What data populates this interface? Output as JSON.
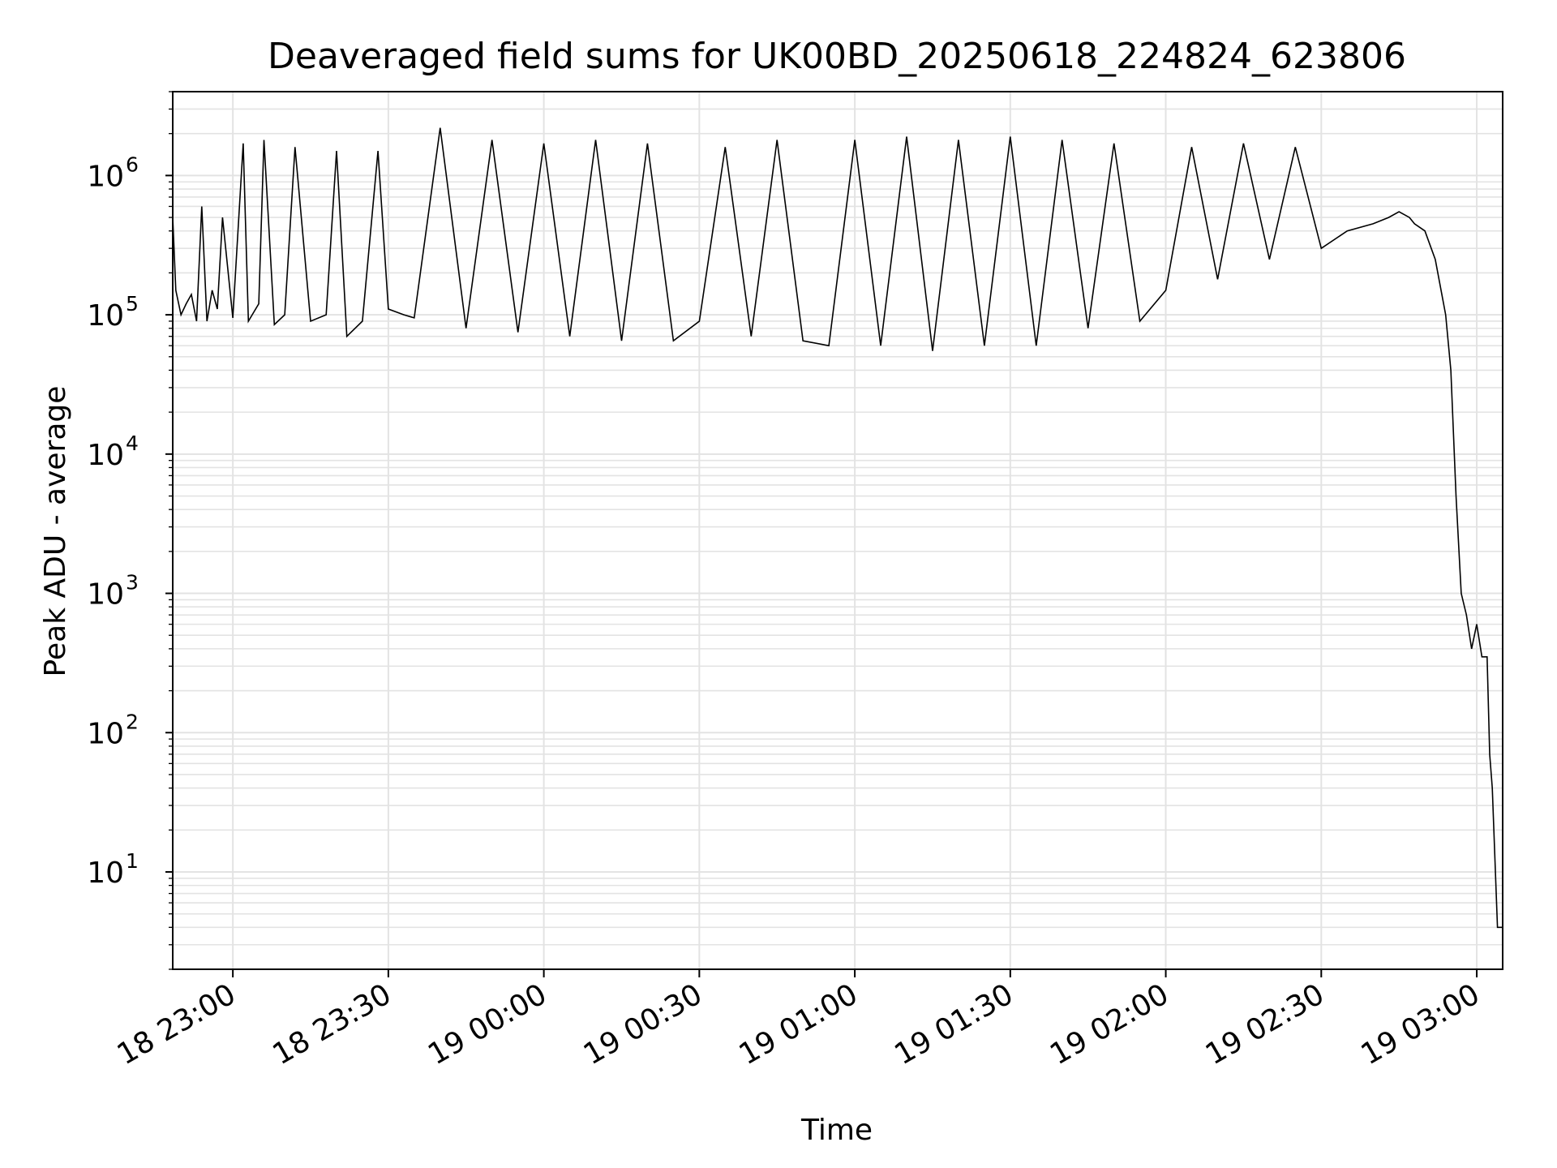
{
  "chart_data": {
    "type": "line",
    "title": "Deaveraged field sums for UK00BD_20250618_224824_623806",
    "xlabel": "Time",
    "ylabel": "Peak ADU - average",
    "y_scale": "log",
    "grid": true,
    "legend": "none",
    "line_color": "#000000",
    "grid_color": "#e3e3e3",
    "xlim": [
      "2025-06-18 22:48:24",
      "2025-06-19 03:05:00"
    ],
    "ylim": [
      2,
      4000000
    ],
    "x_ticks": [
      {
        "time": "2025-06-18 23:00",
        "label": "18 23:00"
      },
      {
        "time": "2025-06-18 23:30",
        "label": "18 23:30"
      },
      {
        "time": "2025-06-19 00:00",
        "label": "19 00:00"
      },
      {
        "time": "2025-06-19 00:30",
        "label": "19 00:30"
      },
      {
        "time": "2025-06-19 01:00",
        "label": "19 01:00"
      },
      {
        "time": "2025-06-19 01:30",
        "label": "19 01:30"
      },
      {
        "time": "2025-06-19 02:00",
        "label": "19 02:00"
      },
      {
        "time": "2025-06-19 02:30",
        "label": "19 02:30"
      },
      {
        "time": "2025-06-19 03:00",
        "label": "19 03:00"
      }
    ],
    "y_ticks": [
      {
        "value": 10,
        "base": "10",
        "exp": "1"
      },
      {
        "value": 100,
        "base": "10",
        "exp": "2"
      },
      {
        "value": 1000,
        "base": "10",
        "exp": "3"
      },
      {
        "value": 10000,
        "base": "10",
        "exp": "4"
      },
      {
        "value": 100000,
        "base": "10",
        "exp": "5"
      },
      {
        "value": 1000000,
        "base": "10",
        "exp": "6"
      }
    ],
    "series": [
      {
        "x": [
          "2025-06-18 22:48:24",
          "2025-06-18 22:49:00",
          "2025-06-18 22:50:00",
          "2025-06-18 22:51:00",
          "2025-06-18 22:52:00",
          "2025-06-18 22:53:00",
          "2025-06-18 22:54:00",
          "2025-06-18 22:55:00",
          "2025-06-18 22:56:00",
          "2025-06-18 22:57:00",
          "2025-06-18 22:58:00",
          "2025-06-18 23:00:00",
          "2025-06-18 23:02:00",
          "2025-06-18 23:03:00",
          "2025-06-18 23:05:00",
          "2025-06-18 23:06:00",
          "2025-06-18 23:08:00",
          "2025-06-18 23:10:00",
          "2025-06-18 23:12:00",
          "2025-06-18 23:15:00",
          "2025-06-18 23:18:00",
          "2025-06-18 23:20:00",
          "2025-06-18 23:22:00",
          "2025-06-18 23:25:00",
          "2025-06-18 23:28:00",
          "2025-06-18 23:30:00",
          "2025-06-18 23:33:00",
          "2025-06-18 23:35:00",
          "2025-06-18 23:40:00",
          "2025-06-18 23:45:00",
          "2025-06-18 23:50:00",
          "2025-06-18 23:55:00",
          "2025-06-19 00:00:00",
          "2025-06-19 00:05:00",
          "2025-06-19 00:10:00",
          "2025-06-19 00:15:00",
          "2025-06-19 00:20:00",
          "2025-06-19 00:25:00",
          "2025-06-19 00:30:00",
          "2025-06-19 00:35:00",
          "2025-06-19 00:40:00",
          "2025-06-19 00:45:00",
          "2025-06-19 00:50:00",
          "2025-06-19 00:55:00",
          "2025-06-19 01:00:00",
          "2025-06-19 01:05:00",
          "2025-06-19 01:10:00",
          "2025-06-19 01:15:00",
          "2025-06-19 01:20:00",
          "2025-06-19 01:25:00",
          "2025-06-19 01:30:00",
          "2025-06-19 01:35:00",
          "2025-06-19 01:40:00",
          "2025-06-19 01:45:00",
          "2025-06-19 01:50:00",
          "2025-06-19 01:55:00",
          "2025-06-19 02:00:00",
          "2025-06-19 02:05:00",
          "2025-06-19 02:10:00",
          "2025-06-19 02:15:00",
          "2025-06-19 02:20:00",
          "2025-06-19 02:25:00",
          "2025-06-19 02:30:00",
          "2025-06-19 02:35:00",
          "2025-06-19 02:40:00",
          "2025-06-19 02:43:00",
          "2025-06-19 02:45:00",
          "2025-06-19 02:47:00",
          "2025-06-19 02:48:00",
          "2025-06-19 02:50:00",
          "2025-06-19 02:52:00",
          "2025-06-19 02:54:00",
          "2025-06-19 02:55:00",
          "2025-06-19 02:56:00",
          "2025-06-19 02:57:00",
          "2025-06-19 02:58:00",
          "2025-06-19 02:59:00",
          "2025-06-19 03:00:00",
          "2025-06-19 03:01:00",
          "2025-06-19 03:02:00",
          "2025-06-19 03:02:30",
          "2025-06-19 03:03:00",
          "2025-06-19 03:04:00",
          "2025-06-19 03:05:00"
        ],
        "y": [
          500000,
          150000,
          100000,
          120000,
          140000,
          90000,
          600000,
          90000,
          150000,
          110000,
          500000,
          95000,
          1700000,
          90000,
          120000,
          1800000,
          85000,
          100000,
          1600000,
          90000,
          100000,
          1500000,
          70000,
          90000,
          1500000,
          110000,
          100000,
          95000,
          2200000,
          80000,
          1800000,
          75000,
          1700000,
          70000,
          1800000,
          65000,
          1700000,
          65000,
          90000,
          1600000,
          70000,
          1800000,
          65000,
          60000,
          1800000,
          60000,
          1900000,
          55000,
          1800000,
          60000,
          1900000,
          60000,
          1800000,
          80000,
          1700000,
          90000,
          150000,
          1600000,
          180000,
          1700000,
          250000,
          1600000,
          300000,
          400000,
          450000,
          500000,
          550000,
          500000,
          450000,
          400000,
          250000,
          100000,
          40000,
          5000,
          1000,
          700,
          400,
          600,
          350,
          350,
          70,
          40,
          4,
          4
        ]
      }
    ]
  }
}
